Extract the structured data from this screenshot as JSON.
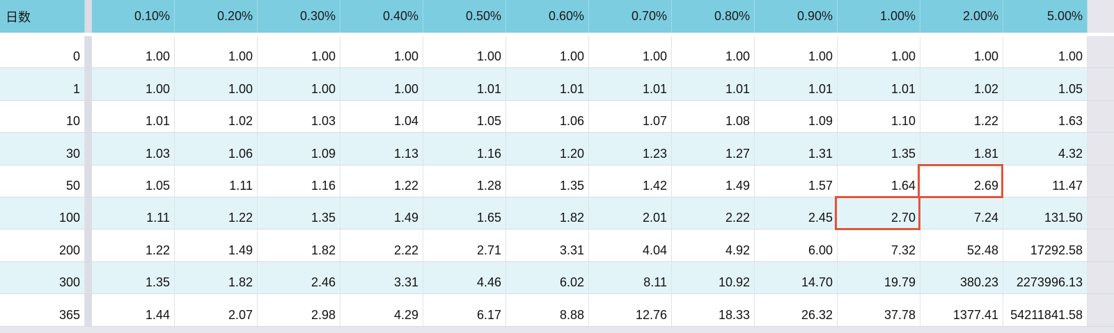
{
  "table": {
    "corner_label": "日数",
    "columns": [
      "0.10%",
      "0.20%",
      "0.30%",
      "0.40%",
      "0.50%",
      "0.60%",
      "0.70%",
      "0.80%",
      "0.90%",
      "1.00%",
      "2.00%",
      "5.00%"
    ],
    "rows": [
      {
        "day": "0",
        "values": [
          "1.00",
          "1.00",
          "1.00",
          "1.00",
          "1.00",
          "1.00",
          "1.00",
          "1.00",
          "1.00",
          "1.00",
          "1.00",
          "1.00"
        ]
      },
      {
        "day": "1",
        "values": [
          "1.00",
          "1.00",
          "1.00",
          "1.00",
          "1.01",
          "1.01",
          "1.01",
          "1.01",
          "1.01",
          "1.01",
          "1.02",
          "1.05"
        ]
      },
      {
        "day": "10",
        "values": [
          "1.01",
          "1.02",
          "1.03",
          "1.04",
          "1.05",
          "1.06",
          "1.07",
          "1.08",
          "1.09",
          "1.10",
          "1.22",
          "1.63"
        ]
      },
      {
        "day": "30",
        "values": [
          "1.03",
          "1.06",
          "1.09",
          "1.13",
          "1.16",
          "1.20",
          "1.23",
          "1.27",
          "1.31",
          "1.35",
          "1.81",
          "4.32"
        ]
      },
      {
        "day": "50",
        "values": [
          "1.05",
          "1.11",
          "1.16",
          "1.22",
          "1.28",
          "1.35",
          "1.42",
          "1.49",
          "1.57",
          "1.64",
          "2.69",
          "11.47"
        ]
      },
      {
        "day": "100",
        "values": [
          "1.11",
          "1.22",
          "1.35",
          "1.49",
          "1.65",
          "1.82",
          "2.01",
          "2.22",
          "2.45",
          "2.70",
          "7.24",
          "131.50"
        ]
      },
      {
        "day": "200",
        "values": [
          "1.22",
          "1.49",
          "1.82",
          "2.22",
          "2.71",
          "3.31",
          "4.04",
          "4.92",
          "6.00",
          "7.32",
          "52.48",
          "17292.58"
        ]
      },
      {
        "day": "300",
        "values": [
          "1.35",
          "1.82",
          "2.46",
          "3.31",
          "4.46",
          "6.02",
          "8.11",
          "10.92",
          "14.70",
          "19.79",
          "380.23",
          "2273996.13"
        ]
      },
      {
        "day": "365",
        "values": [
          "1.44",
          "2.07",
          "2.98",
          "4.29",
          "6.17",
          "8.88",
          "12.76",
          "18.33",
          "26.32",
          "37.78",
          "1377.41",
          "54211841.58"
        ]
      }
    ],
    "highlighted_cells": [
      {
        "row": 4,
        "col": 10
      },
      {
        "row": 5,
        "col": 9
      }
    ],
    "colors": {
      "header_bg": "#7ccde0",
      "alt_row_bg": "#e3f4f8",
      "highlight_border": "#e2553a"
    }
  }
}
